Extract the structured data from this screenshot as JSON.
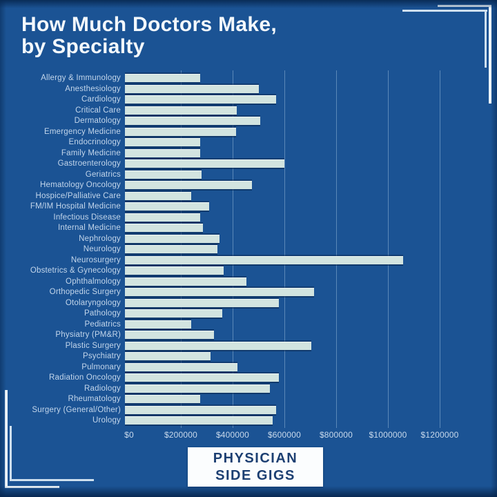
{
  "page": {
    "background_color": "#1b5394",
    "edge_shadow_color": "#0c3768",
    "accent_text_color": "#c3d6eb"
  },
  "header": {
    "title_line1": "How Much Doctors Make,",
    "title_line2": "by Specialty"
  },
  "footer_badge": {
    "line1": "PHYSICIAN",
    "line2": "SIDE GIGS",
    "bg_color": "#fbfdfe",
    "text_color": "#1c3f72"
  },
  "chart_data": {
    "type": "bar",
    "orientation": "horizontal",
    "title": "How Much Doctors Make, by Specialty",
    "xlabel": "",
    "ylabel": "",
    "xlim": [
      0,
      1400000
    ],
    "grid": true,
    "bar_color": "#d2e4e0",
    "gridline_color": "rgba(198,224,245,0.38)",
    "categories": [
      "Allergy & Immunology",
      "Anesthesiology",
      "Cardiology",
      "Critical Care",
      "Dermatology",
      "Emergency Medicine",
      "Endocrinology",
      "Family Medicine",
      "Gastroenterology",
      "Geriatrics",
      "Hematology Oncology",
      "Hospice/Palliative Care",
      "FM/IM Hospital Medicine",
      "Infectious Disease",
      "Internal Medicine",
      "Nephrology",
      "Neurology",
      "Neurosurgery",
      "Obstetrics & Gynecology",
      "Ophthalmology",
      "Orthopedic Surgery",
      "Otolaryngology",
      "Pathology",
      "Pediatrics",
      "Physiatry (PM&R)",
      "Plastic Surgery",
      "Psychiatry",
      "Pulmonary",
      "Radiation Oncology",
      "Radiology",
      "Rheumatology",
      "Surgery (General/Other)",
      "Urology"
    ],
    "values": [
      290000,
      518000,
      583000,
      433000,
      522000,
      428000,
      290000,
      290000,
      615000,
      295000,
      490000,
      255000,
      325000,
      290000,
      300000,
      365000,
      358000,
      1075000,
      380000,
      470000,
      730000,
      595000,
      375000,
      255000,
      345000,
      720000,
      330000,
      435000,
      595000,
      560000,
      290000,
      585000,
      570000
    ],
    "x_ticks": [
      {
        "label": "$0",
        "value": 0
      },
      {
        "label": "$200000",
        "value": 200000
      },
      {
        "label": "$400000",
        "value": 400000
      },
      {
        "label": "$600000",
        "value": 600000
      },
      {
        "label": "$800000",
        "value": 800000
      },
      {
        "label": "$1000000",
        "value": 1000000
      },
      {
        "label": "$1200000",
        "value": 1200000
      }
    ]
  }
}
